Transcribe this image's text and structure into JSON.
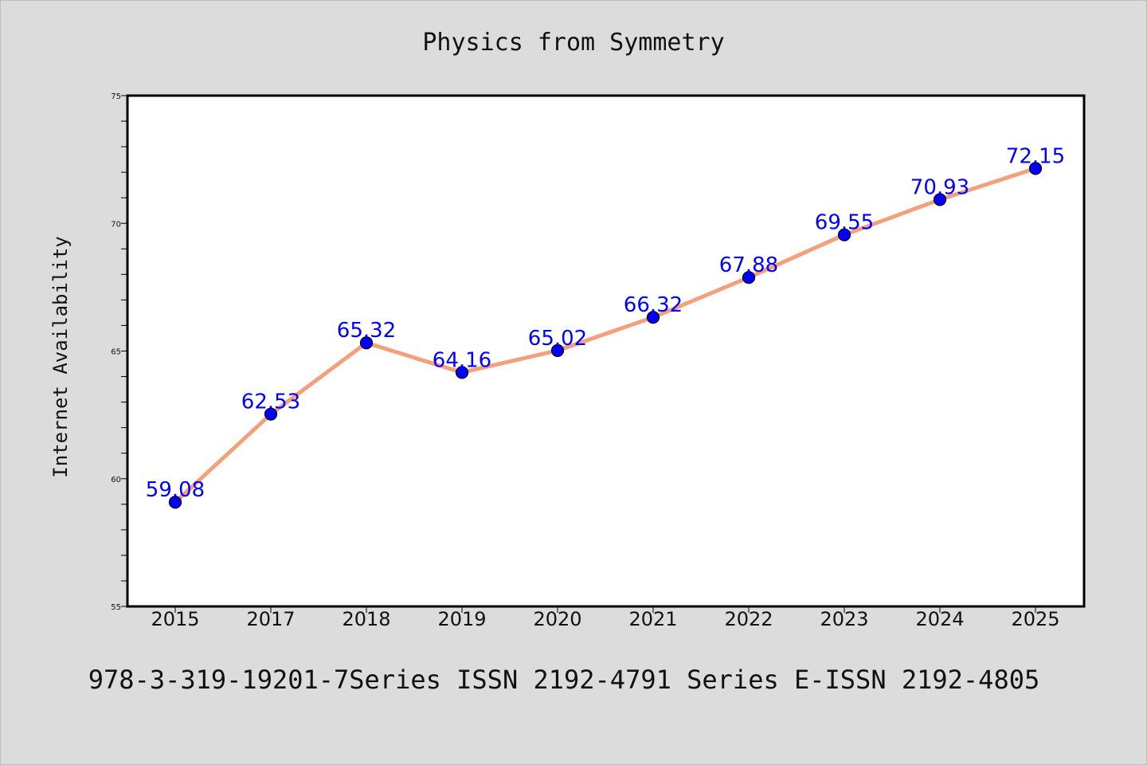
{
  "chart_data": {
    "type": "line",
    "title": "Physics from Symmetry",
    "ylabel": "Internet Availability",
    "xlabel": "",
    "footer": "978-3-319-19201-7Series ISSN 2192-4791 Series E-ISSN 2192-4805",
    "categories": [
      "2015",
      "2017",
      "2018",
      "2019",
      "2020",
      "2021",
      "2022",
      "2023",
      "2024",
      "2025"
    ],
    "series": [
      {
        "values": [
          59.08,
          62.53,
          65.32,
          64.16,
          65.02,
          66.32,
          67.88,
          69.55,
          70.93,
          72.15
        ]
      }
    ],
    "ylim": [
      55,
      75
    ],
    "yticks": [
      "55",
      "60",
      "65",
      "70",
      "75"
    ],
    "yminor_step": 1,
    "grid": false,
    "legend": "none",
    "colors": {
      "line": "#f4a07c",
      "marker": "#0000ff",
      "marker_edge": "#000000",
      "data_label": "#0000ff",
      "background": "#dcdcdc",
      "plot_background": "#ffffff"
    }
  }
}
